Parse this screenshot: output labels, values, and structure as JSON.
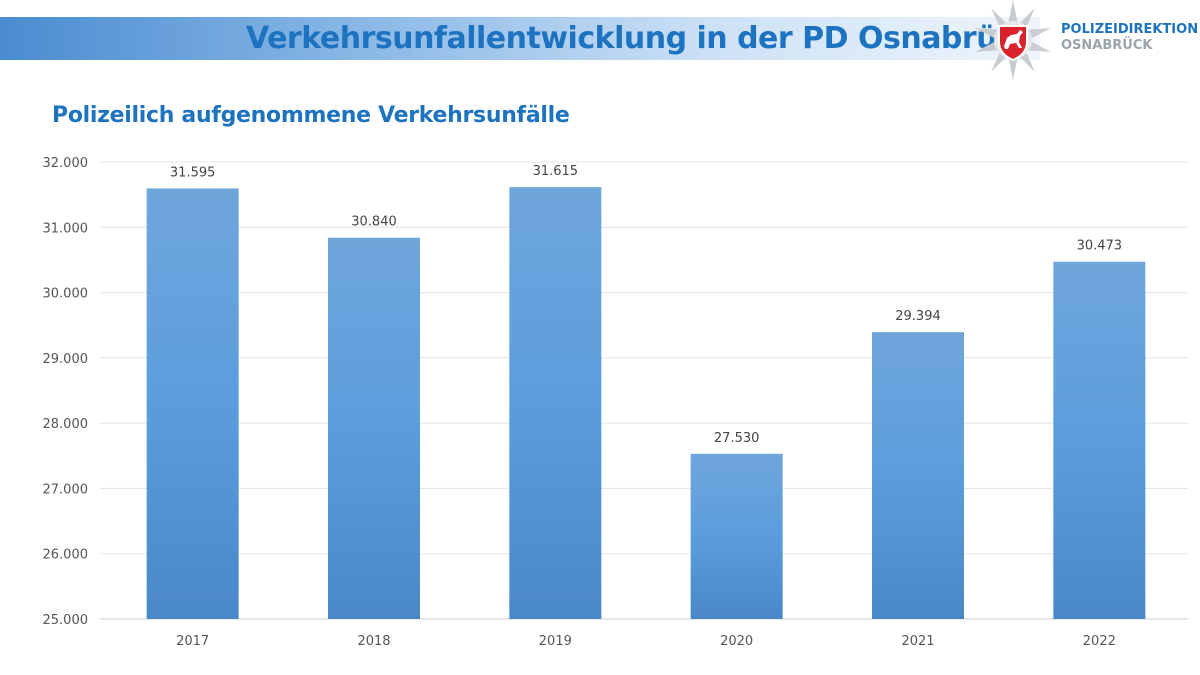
{
  "header": {
    "title": "Verkehrsunfallentwicklung in der PD Osnabrück",
    "org_line1": "POLIZEIDIREKTION",
    "org_line2": "OSNABRÜCK",
    "logo": "police-star-with-lower-saxony-horse-crest-icon"
  },
  "colors": {
    "accent": "#1d73c0",
    "bar": "#5b9bd5"
  },
  "chart_data": {
    "type": "bar",
    "title": "Polizeilich aufgenommene Verkehrsunfälle",
    "xlabel": "",
    "ylabel": "",
    "categories": [
      "2017",
      "2018",
      "2019",
      "2020",
      "2021",
      "2022"
    ],
    "values": [
      31595,
      30840,
      31615,
      27530,
      29394,
      30473
    ],
    "data_labels": [
      "31.595",
      "30.840",
      "31.615",
      "27.530",
      "29.394",
      "30.473"
    ],
    "ylim": [
      25000,
      32000
    ],
    "yticks": [
      "25.000",
      "26.000",
      "27.000",
      "28.000",
      "29.000",
      "30.000",
      "31.000",
      "32.000"
    ],
    "grid": true,
    "legend": "none"
  }
}
